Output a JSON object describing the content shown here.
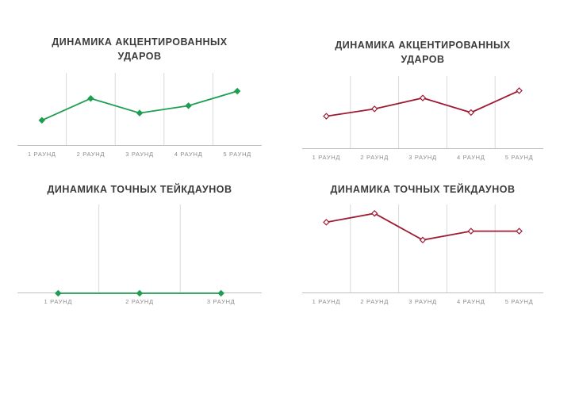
{
  "style": {
    "background": "#ffffff",
    "gridline_color": "#d9d9d9",
    "axis_color": "#bfbfbf",
    "title_color": "#3b3b3b",
    "label_color": "#8c8c8c",
    "green_accent": "#1e9e50",
    "red_accent": "#9e1b33"
  },
  "chart_data": [
    {
      "type": "line",
      "title": "ДИНАМИКА АКЦЕНТИРОВАННЫХ УДАРОВ",
      "color": "#1e9e50",
      "marker": "diamond",
      "marker_fill": "#1e9e50",
      "categories": [
        "1 РАУНД",
        "2 РАУНД",
        "3 РАУНД",
        "4 РАУНД",
        "5 РАУНД"
      ],
      "values": [
        7,
        13,
        9,
        11,
        15
      ],
      "ylim": [
        0,
        20
      ],
      "xlabel": "",
      "ylabel": "",
      "grid": "vertical-only",
      "legend": "none"
    },
    {
      "type": "line",
      "title": "ДИНАМИКА АКЦЕНТИРОВАННЫХ УДАРОВ",
      "color": "#9e1b33",
      "marker": "diamond",
      "marker_fill": "#ffffff",
      "categories": [
        "1 РАУНД",
        "2 РАУНД",
        "3 РАУНД",
        "4 РАУНД",
        "5 РАУНД"
      ],
      "values": [
        9,
        11,
        14,
        10,
        16
      ],
      "ylim": [
        0,
        20
      ],
      "xlabel": "",
      "ylabel": "",
      "grid": "vertical-only",
      "legend": "none"
    },
    {
      "type": "line",
      "title": "ДИНАМИКА ТОЧНЫХ ТЕЙКДАУНОВ",
      "color": "#1e9e50",
      "marker": "diamond",
      "marker_fill": "#1e9e50",
      "categories": [
        "1 РАУНД",
        "2 РАУНД",
        "3 РАУНД"
      ],
      "values": [
        0,
        0,
        0
      ],
      "ylim": [
        0,
        10
      ],
      "xlabel": "",
      "ylabel": "",
      "grid": "vertical-only",
      "legend": "none"
    },
    {
      "type": "line",
      "title": "ДИНАМИКА ТОЧНЫХ ТЕЙКДАУНОВ",
      "color": "#9e1b33",
      "marker": "diamond",
      "marker_fill": "#ffffff",
      "categories": [
        "1 РАУНД",
        "2 РАУНД",
        "3 РАУНД",
        "4 РАУНД",
        "5 РАУНД"
      ],
      "values": [
        8,
        9,
        6,
        7,
        7
      ],
      "ylim": [
        0,
        10
      ],
      "xlabel": "",
      "ylabel": "",
      "grid": "vertical-only",
      "legend": "none"
    }
  ]
}
